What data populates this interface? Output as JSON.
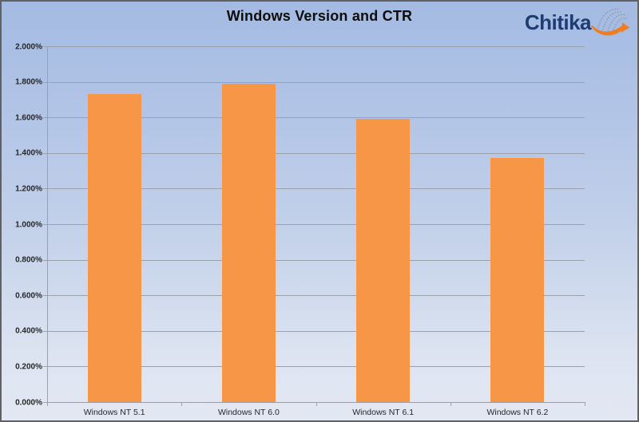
{
  "title": "Windows Version and CTR",
  "logo": {
    "text": "Chitika",
    "swoosh_icon": "dotted-globe-with-orange-arrow",
    "text_color": "#1d3c72",
    "arrow_color": "#ef7d22"
  },
  "colors": {
    "background_top": "#a3bae2",
    "background_bottom": "#e3e8f3",
    "bar": "#f79646",
    "gridline": "#9ba1aa",
    "border": "#616161",
    "label_text": "#262626",
    "title_text": "#0d0d0d"
  },
  "chart_data": {
    "type": "bar",
    "title": "Windows Version and CTR",
    "categories": [
      "Windows NT 5.1",
      "Windows NT 6.0",
      "Windows NT 6.1",
      "Windows NT 6.2"
    ],
    "values": [
      1.73,
      1.79,
      1.59,
      1.37
    ],
    "value_unit": "percent",
    "xlabel": "",
    "ylabel": "",
    "ylim": [
      0,
      2.0
    ],
    "ytick_step": 0.2,
    "ytick_labels": [
      "0.000%",
      "0.200%",
      "0.400%",
      "0.600%",
      "0.800%",
      "1.000%",
      "1.200%",
      "1.400%",
      "1.600%",
      "1.800%",
      "2.000%"
    ],
    "grid": true,
    "legend": "none",
    "bar_color": "#f79646"
  }
}
